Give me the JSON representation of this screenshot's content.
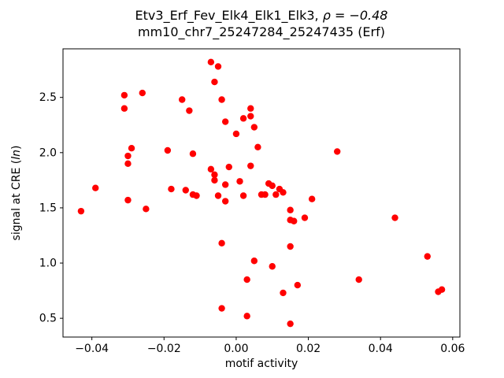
{
  "chart_data": {
    "type": "scatter",
    "title_line1": {
      "prefix": "Etv3_Erf_Fev_Elk4_Elk1_Elk3, ",
      "math": "ρ = −0.48"
    },
    "title_line2": "mm10_chr7_25247284_25247435 (Erf)",
    "xlabel": "motif activity",
    "ylabel": {
      "prefix": "signal at CRE (",
      "italic": "ln",
      "suffix": ")"
    },
    "xlim": [
      -0.048,
      0.062
    ],
    "ylim": [
      0.33,
      2.94
    ],
    "xticks": [
      -0.04,
      -0.02,
      0.0,
      0.02,
      0.04,
      0.06
    ],
    "xtick_labels": [
      "−0.04",
      "−0.02",
      "0.00",
      "0.02",
      "0.04",
      "0.06"
    ],
    "yticks": [
      0.5,
      1.0,
      1.5,
      2.0,
      2.5
    ],
    "ytick_labels": [
      "0.5",
      "1.0",
      "1.5",
      "2.0",
      "2.5"
    ],
    "grid": false,
    "legend": "none",
    "marker_color": "#ff0000",
    "axis_color": "#000000",
    "points": [
      [
        -0.043,
        1.47
      ],
      [
        -0.039,
        1.68
      ],
      [
        -0.031,
        2.52
      ],
      [
        -0.031,
        2.4
      ],
      [
        -0.03,
        1.97
      ],
      [
        -0.03,
        1.9
      ],
      [
        -0.03,
        1.57
      ],
      [
        -0.029,
        2.04
      ],
      [
        -0.026,
        2.54
      ],
      [
        -0.025,
        1.49
      ],
      [
        -0.019,
        2.02
      ],
      [
        -0.018,
        1.67
      ],
      [
        -0.015,
        2.48
      ],
      [
        -0.014,
        1.66
      ],
      [
        -0.013,
        2.38
      ],
      [
        -0.012,
        1.99
      ],
      [
        -0.012,
        1.62
      ],
      [
        -0.011,
        1.61
      ],
      [
        -0.007,
        2.82
      ],
      [
        -0.007,
        1.85
      ],
      [
        -0.006,
        2.64
      ],
      [
        -0.006,
        1.8
      ],
      [
        -0.006,
        1.75
      ],
      [
        -0.005,
        2.78
      ],
      [
        -0.005,
        1.61
      ],
      [
        -0.004,
        2.48
      ],
      [
        -0.004,
        1.18
      ],
      [
        -0.004,
        0.59
      ],
      [
        -0.003,
        2.28
      ],
      [
        -0.003,
        1.71
      ],
      [
        -0.003,
        1.56
      ],
      [
        -0.002,
        1.87
      ],
      [
        0.0,
        2.17
      ],
      [
        0.001,
        1.74
      ],
      [
        0.002,
        2.31
      ],
      [
        0.002,
        1.61
      ],
      [
        0.003,
        0.85
      ],
      [
        0.003,
        0.52
      ],
      [
        0.004,
        2.4
      ],
      [
        0.004,
        2.33
      ],
      [
        0.004,
        1.88
      ],
      [
        0.005,
        2.23
      ],
      [
        0.005,
        1.02
      ],
      [
        0.006,
        2.05
      ],
      [
        0.007,
        1.62
      ],
      [
        0.008,
        1.62
      ],
      [
        0.009,
        1.72
      ],
      [
        0.01,
        1.7
      ],
      [
        0.01,
        0.97
      ],
      [
        0.011,
        1.62
      ],
      [
        0.012,
        1.67
      ],
      [
        0.013,
        1.64
      ],
      [
        0.013,
        0.73
      ],
      [
        0.015,
        1.48
      ],
      [
        0.015,
        1.39
      ],
      [
        0.015,
        1.15
      ],
      [
        0.015,
        0.45
      ],
      [
        0.016,
        1.38
      ],
      [
        0.017,
        0.8
      ],
      [
        0.019,
        1.41
      ],
      [
        0.021,
        1.58
      ],
      [
        0.028,
        2.01
      ],
      [
        0.034,
        0.85
      ],
      [
        0.044,
        1.41
      ],
      [
        0.053,
        1.06
      ],
      [
        0.056,
        0.74
      ],
      [
        0.057,
        0.76
      ]
    ]
  }
}
